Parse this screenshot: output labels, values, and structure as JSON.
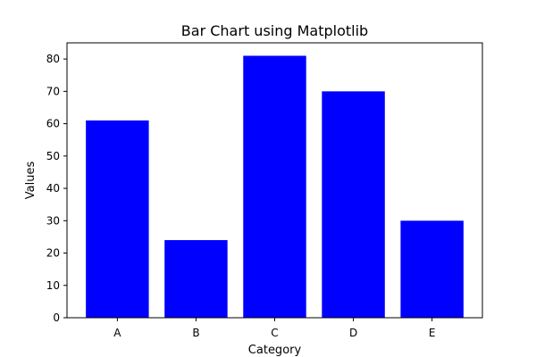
{
  "chart_data": {
    "type": "bar",
    "title": "Bar Chart using Matplotlib",
    "xlabel": "Category",
    "ylabel": "Values",
    "categories": [
      "A",
      "B",
      "C",
      "D",
      "E"
    ],
    "values": [
      61,
      24,
      81,
      70,
      30
    ],
    "ylim": [
      0,
      85
    ],
    "yticks": [
      0,
      10,
      20,
      30,
      40,
      50,
      60,
      70,
      80
    ],
    "grid": false,
    "legend": "none",
    "bar_color": "#0000ff",
    "axis_color": "#000000",
    "background": "#ffffff"
  }
}
